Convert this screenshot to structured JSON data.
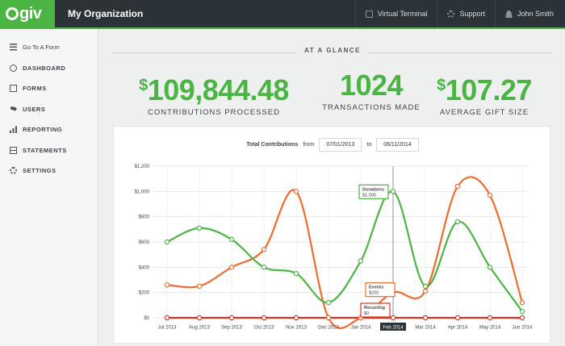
{
  "topbar": {
    "logo": "Qgiv",
    "title": "My Organization",
    "nav": [
      {
        "label": "Virtual Terminal",
        "icon": "terminal-icon"
      },
      {
        "label": "Support",
        "icon": "support-icon"
      },
      {
        "label": "John Smith",
        "icon": "user-icon"
      }
    ]
  },
  "sidebar": {
    "items": [
      {
        "label": "Go To A Form",
        "icon": "menu-icon"
      },
      {
        "label": "DASHBOARD",
        "icon": "dashboard-icon"
      },
      {
        "label": "FORMS",
        "icon": "forms-icon"
      },
      {
        "label": "USERS",
        "icon": "users-icon"
      },
      {
        "label": "REPORTING",
        "icon": "reporting-icon"
      },
      {
        "label": "STATEMENTS",
        "icon": "statements-icon"
      },
      {
        "label": "SETTINGS",
        "icon": "settings-icon"
      }
    ]
  },
  "glance": {
    "title": "AT A GLANCE",
    "stats": [
      {
        "currency": "$",
        "value": "109,844.48",
        "label": "CONTRIBUTIONS PROCESSED"
      },
      {
        "currency": "",
        "value": "1024",
        "label": "TRANSACTIONS MADE"
      },
      {
        "currency": "$",
        "value": "107.27",
        "label": "AVERAGE GIFT SIZE"
      }
    ]
  },
  "filter": {
    "title": "Total Contributions",
    "from_label": "from",
    "from_date": "07/01/2013",
    "to_label": "to",
    "to_date": "06/11/2014"
  },
  "colors": {
    "green": "#4bb543",
    "orange": "#f26a2e",
    "red": "#d9331e",
    "dark": "#2b3338"
  },
  "chart_data": {
    "type": "line",
    "categories": [
      "Jul 2013",
      "Aug 2013",
      "Sep 2013",
      "Oct 2013",
      "Nov 2013",
      "Dec 2013",
      "Jan 2014",
      "Feb 2014",
      "Mar 2014",
      "Apr 2014",
      "May 2014",
      "Jun 2014"
    ],
    "highlighted_category": "Feb 2014",
    "ylim": [
      0,
      1200
    ],
    "yticks": [
      "$0",
      "$200",
      "$400",
      "$600",
      "$800",
      "$1,000",
      "$1,200"
    ],
    "series": [
      {
        "name": "Donations",
        "color": "#4bb543",
        "values": [
          600,
          710,
          620,
          400,
          350,
          120,
          450,
          1000,
          250,
          760,
          400,
          50
        ]
      },
      {
        "name": "Events",
        "color": "#f26a2e",
        "values": [
          260,
          250,
          400,
          540,
          1000,
          0,
          0,
          200,
          210,
          1040,
          970,
          120
        ]
      },
      {
        "name": "Recurring",
        "color": "#d9331e",
        "values": [
          0,
          0,
          0,
          0,
          0,
          0,
          0,
          0,
          0,
          0,
          0,
          0
        ]
      }
    ],
    "tooltips": [
      {
        "series": "Donations",
        "label": "Donations",
        "value": "$1,000",
        "category": "Feb 2014"
      },
      {
        "series": "Events",
        "label": "Events",
        "value": "$200",
        "category": "Feb 2014"
      },
      {
        "series": "Recurring",
        "label": "Recurring",
        "value": "$0",
        "category": "Feb 2014"
      }
    ]
  }
}
